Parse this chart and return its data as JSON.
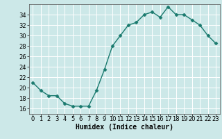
{
  "x": [
    0,
    1,
    2,
    3,
    4,
    5,
    6,
    7,
    8,
    9,
    10,
    11,
    12,
    13,
    14,
    15,
    16,
    17,
    18,
    19,
    20,
    21,
    22,
    23
  ],
  "y": [
    21,
    19.5,
    18.5,
    18.5,
    17,
    16.5,
    16.5,
    16.5,
    19.5,
    23.5,
    28,
    30,
    32,
    32.5,
    34,
    34.5,
    33.5,
    35.5,
    34,
    34,
    33,
    32,
    30,
    28.5
  ],
  "line_color": "#1a7a6e",
  "marker": "D",
  "marker_size": 2.5,
  "bg_color": "#cce8e8",
  "grid_color": "#ffffff",
  "xlabel": "Humidex (Indice chaleur)",
  "xlim": [
    -0.5,
    23.5
  ],
  "ylim": [
    15,
    36
  ],
  "yticks": [
    16,
    18,
    20,
    22,
    24,
    26,
    28,
    30,
    32,
    34
  ],
  "xticks": [
    0,
    1,
    2,
    3,
    4,
    5,
    6,
    7,
    8,
    9,
    10,
    11,
    12,
    13,
    14,
    15,
    16,
    17,
    18,
    19,
    20,
    21,
    22,
    23
  ],
  "xlabel_fontsize": 7,
  "tick_fontsize": 6,
  "linewidth": 1.0
}
